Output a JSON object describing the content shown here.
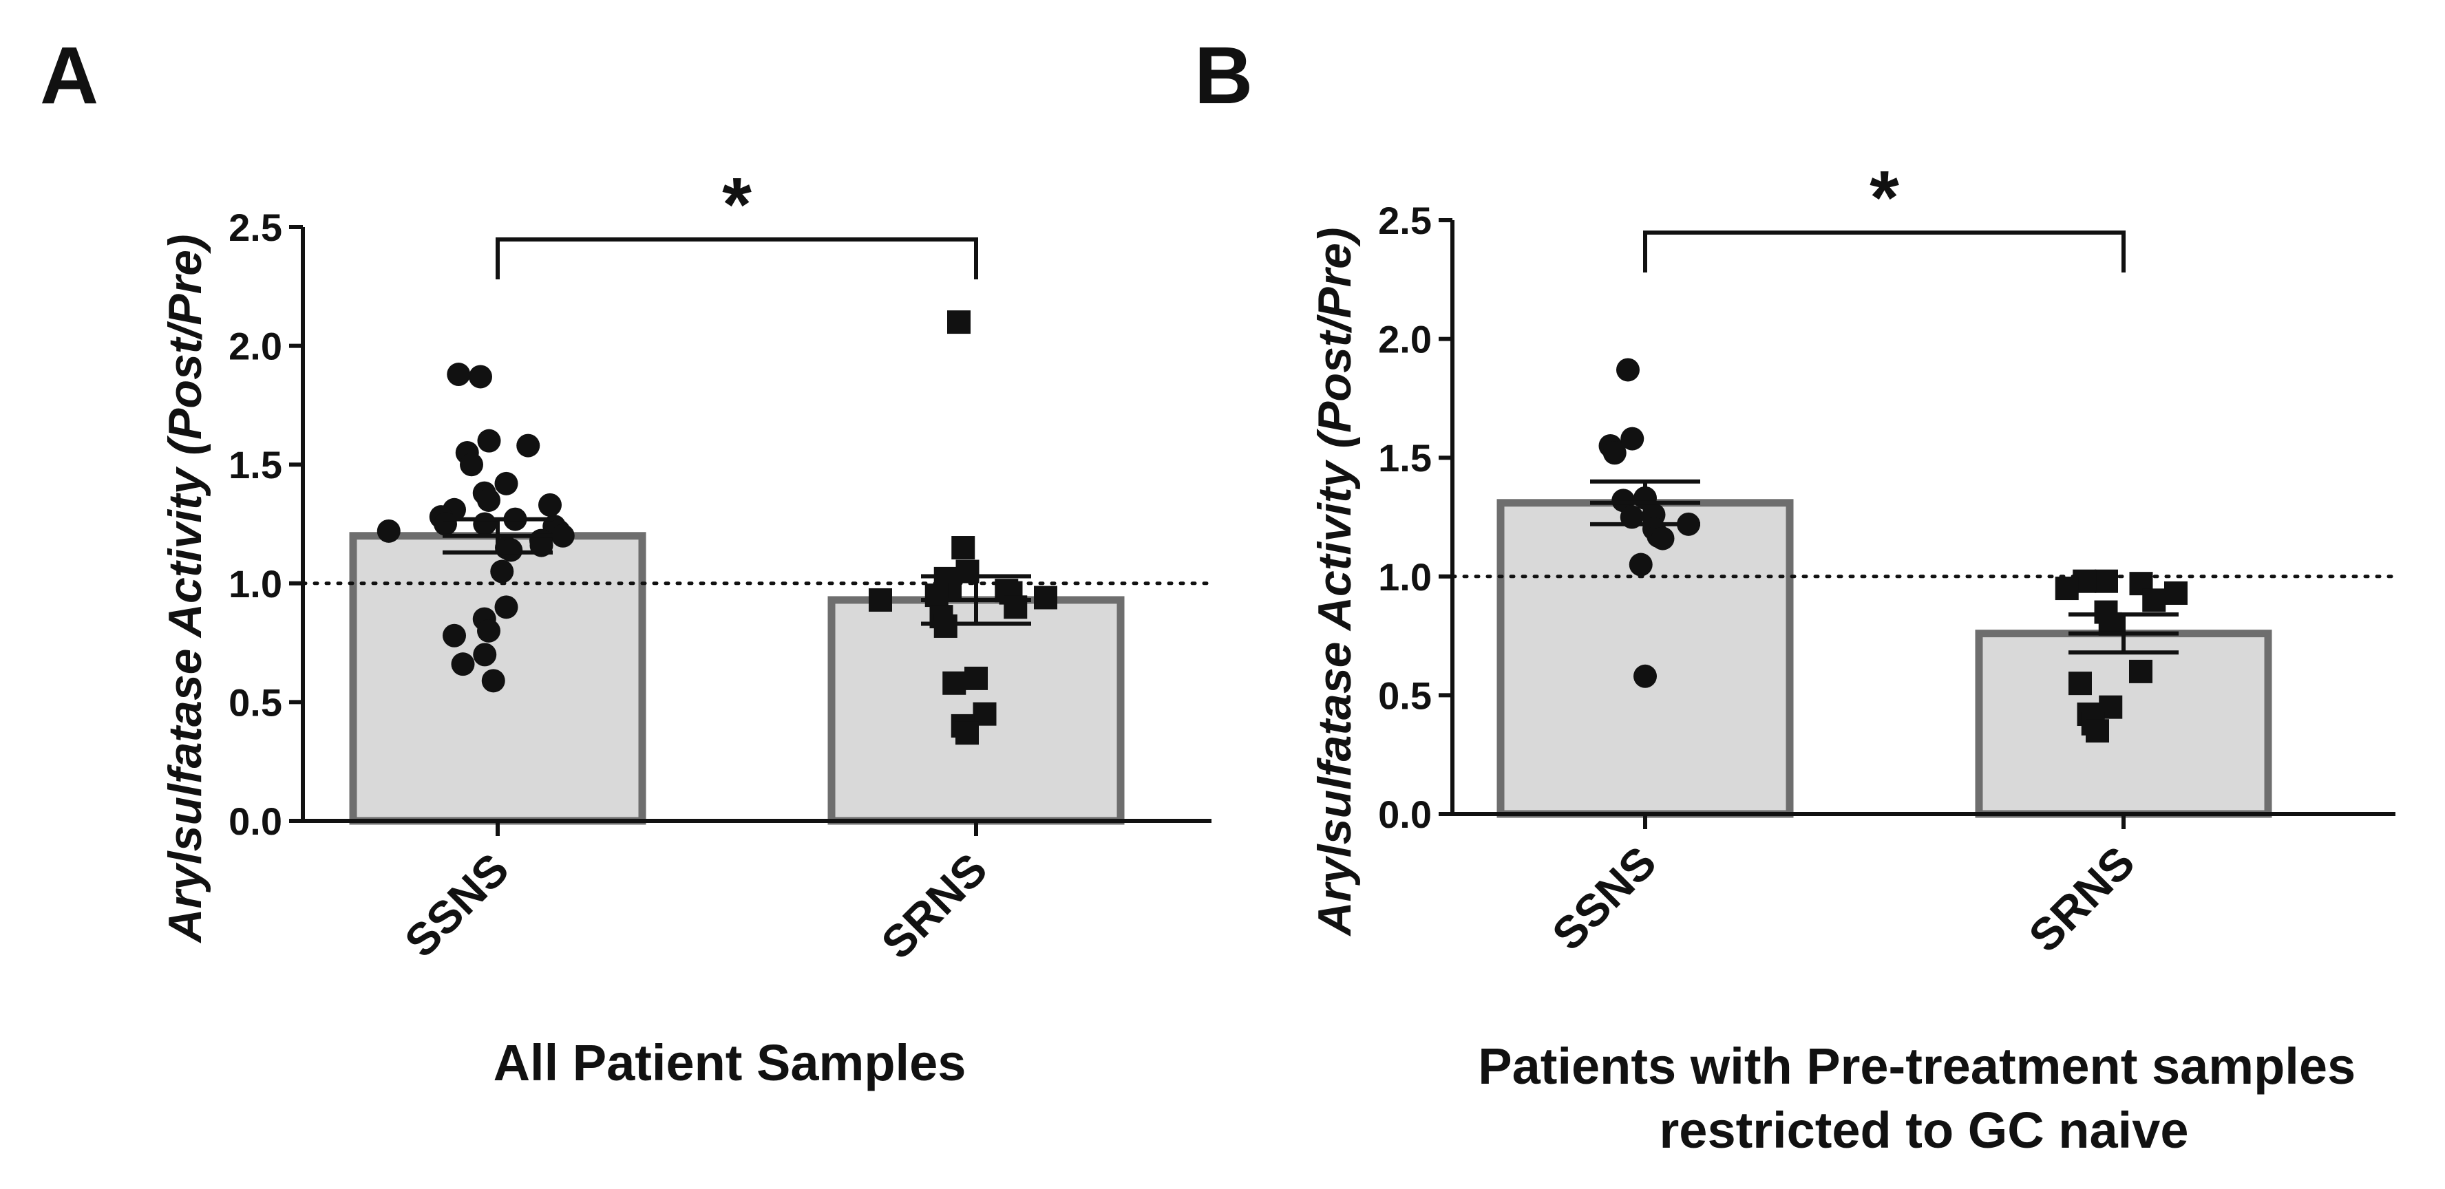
{
  "chart_data": [
    {
      "type": "bar",
      "panel": "A",
      "categories": [
        "SSNS",
        "SRNS"
      ],
      "values": [
        1.2,
        0.93
      ],
      "sem": [
        0.07,
        0.1
      ],
      "reference_line": 1.0,
      "significance": "*",
      "xlabel": "All Patient  Samples",
      "ylabel_main": "Arylsulfatase Activity ",
      "ylabel_paren": "(Post/Pre)",
      "ylim": [
        0,
        2.5
      ],
      "yticks": [
        "0.0",
        "0.5",
        "1.0",
        "1.5",
        "2.0",
        "2.5"
      ],
      "points": [
        [
          1.87,
          1.88,
          1.6,
          1.55,
          1.5,
          1.58,
          1.42,
          1.38,
          1.35,
          1.31,
          1.25,
          1.27,
          1.28,
          1.25,
          1.24,
          1.22,
          1.2,
          1.18,
          1.15,
          1.14,
          1.16,
          1.22,
          1.33,
          1.05,
          0.9,
          0.85,
          0.8,
          0.78,
          0.7,
          0.66,
          0.59
        ],
        [
          2.1,
          1.15,
          1.05,
          1.02,
          0.98,
          0.97,
          0.96,
          0.95,
          0.94,
          0.93,
          0.9,
          0.86,
          0.82,
          0.6,
          0.58,
          0.45,
          0.4,
          0.37
        ]
      ]
    },
    {
      "type": "bar",
      "panel": "B",
      "categories": [
        "SSNS",
        "SRNS"
      ],
      "values": [
        1.31,
        0.76
      ],
      "sem": [
        0.09,
        0.08
      ],
      "reference_line": 1.0,
      "significance": "*",
      "xlabel": "Patients with Pre-treatment samples\nrestricted to GC naive",
      "ylabel_main": "Arylsulfatase Activity ",
      "ylabel_paren": "(Post/Pre)",
      "ylim": [
        0,
        2.5
      ],
      "yticks": [
        "0.0",
        "0.5",
        "1.0",
        "1.5",
        "2.0",
        "2.5"
      ],
      "points": [
        [
          1.87,
          1.58,
          1.55,
          1.52,
          1.33,
          1.32,
          1.26,
          1.25,
          1.22,
          1.2,
          1.17,
          1.16,
          1.05,
          0.58
        ],
        [
          0.98,
          0.98,
          0.97,
          0.95,
          0.93,
          0.9,
          0.85,
          0.8,
          0.6,
          0.55,
          0.45,
          0.42,
          0.38,
          0.35
        ]
      ]
    }
  ]
}
